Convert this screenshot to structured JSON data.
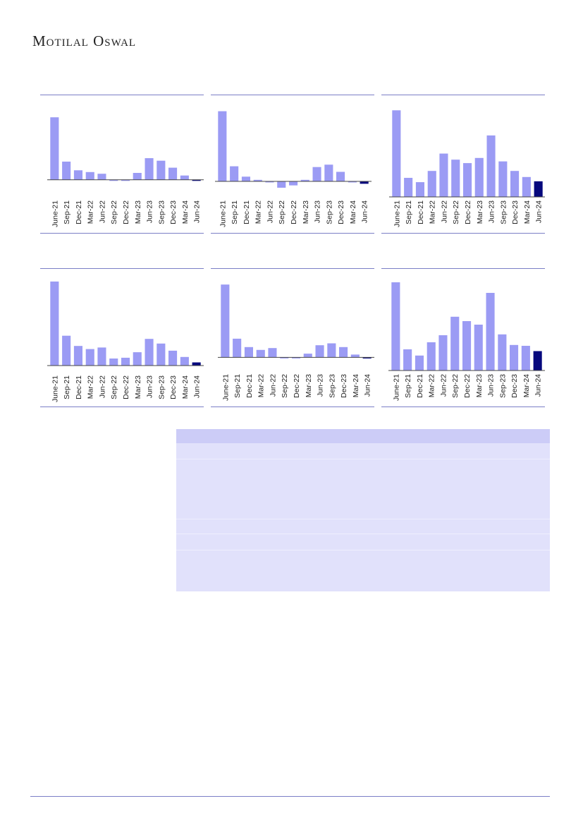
{
  "brand": {
    "logo_text": "Motilal Oswal"
  },
  "colors": {
    "bar": "#9b9bf4",
    "highlight": "#06087d",
    "rule": "#7b7fc6",
    "table_header": "#ccccf7",
    "table_body": "#e1e1fb"
  },
  "chart_data": [
    {
      "type": "bar",
      "categories": [
        "June-21",
        "Sep-21",
        "Dec-21",
        "Mar-22",
        "Jun-22",
        "Sep-22",
        "Dec-22",
        "Mar-23",
        "Jun-23",
        "Sep-23",
        "Dec-23",
        "Mar-24",
        "Jun-24"
      ],
      "values": [
        72,
        21,
        11,
        9,
        7,
        -1,
        0,
        8,
        25,
        22,
        14,
        5,
        0
      ],
      "highlight_last": true,
      "ylim": [
        -5,
        90
      ]
    },
    {
      "type": "bar",
      "categories": [
        "June-21",
        "Sep-21",
        "Dec-21",
        "Mar-22",
        "Jun-22",
        "Sep-22",
        "Dec-22",
        "Mar-23",
        "Jun-23",
        "Sep-23",
        "Dec-23",
        "Mar-24",
        "Jun-24"
      ],
      "values": [
        88,
        19,
        6,
        2,
        -1,
        -8,
        -5,
        2,
        18,
        21,
        12,
        -1,
        -3
      ],
      "highlight_last": true,
      "ylim": [
        -15,
        100
      ]
    },
    {
      "type": "bar",
      "categories": [
        "June-21",
        "Sep-21",
        "Dec-21",
        "Mar-22",
        "Jun-22",
        "Sep-22",
        "Dec-22",
        "Mar-23",
        "Jun-23",
        "Sep-23",
        "Dec-23",
        "Mar-24",
        "Jun-24"
      ],
      "values": [
        100,
        22,
        17,
        30,
        50,
        43,
        39,
        45,
        71,
        41,
        30,
        23,
        18
      ],
      "highlight_last": true,
      "ylim": [
        0,
        110
      ]
    },
    {
      "type": "bar",
      "categories": [
        "June-21",
        "Sep-21",
        "Dec-21",
        "Mar-22",
        "Jun-22",
        "Sep-22",
        "Dec-22",
        "Mar-23",
        "Jun-23",
        "Sep-23",
        "Dec-23",
        "Mar-24",
        "Jun-24"
      ],
      "values": [
        107,
        38,
        25,
        21,
        23,
        9,
        10,
        17,
        34,
        28,
        19,
        11,
        4
      ],
      "highlight_last": true,
      "ylim": [
        0,
        115
      ]
    },
    {
      "type": "bar",
      "categories": [
        "June-21",
        "Sep-21",
        "Dec-21",
        "Mar-22",
        "Jun-22",
        "Sep-22",
        "Dec-22",
        "Mar-23",
        "Jun-23",
        "Sep-23",
        "Dec-23",
        "Mar-24",
        "Jun-24"
      ],
      "values": [
        78,
        20,
        11,
        8,
        10,
        -1,
        0,
        4,
        13,
        15,
        11,
        3,
        0
      ],
      "highlight_last": true,
      "ylim": [
        -5,
        88
      ]
    },
    {
      "type": "bar",
      "categories": [
        "June-21",
        "Sep-21",
        "Dec-21",
        "Mar-22",
        "Jun-22",
        "Sep-22",
        "Dec-22",
        "Mar-23",
        "Jun-23",
        "Sep-23",
        "Dec-23",
        "Mar-24",
        "Jun-24"
      ],
      "values": [
        100,
        24,
        17,
        32,
        40,
        61,
        56,
        52,
        88,
        41,
        29,
        28,
        22
      ],
      "highlight_last": true,
      "ylim": [
        0,
        108
      ]
    }
  ]
}
